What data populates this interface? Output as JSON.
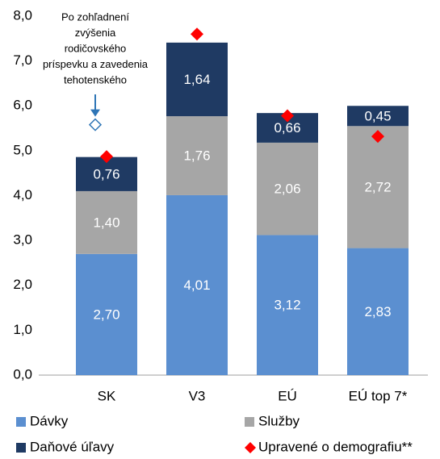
{
  "chart_data": {
    "type": "stacked_bar",
    "categories": [
      "SK",
      "V3",
      "EÚ",
      "EÚ top 7*"
    ],
    "series": [
      {
        "name": "Dávky",
        "color": "#5b8fd0",
        "values": [
          2.7,
          4.01,
          3.12,
          2.83
        ],
        "value_labels": [
          "2,70",
          "4,01",
          "3,12",
          "2,83"
        ]
      },
      {
        "name": "Služby",
        "color": "#a6a6a6",
        "values": [
          1.4,
          1.76,
          2.06,
          2.72
        ],
        "value_labels": [
          "1,40",
          "1,76",
          "2,06",
          "2,72"
        ]
      },
      {
        "name": "Daňové úľavy",
        "color": "#1f3a63",
        "values": [
          0.76,
          1.64,
          0.66,
          0.45
        ],
        "value_labels": [
          "0,76",
          "1,64",
          "0,66",
          "0,45"
        ]
      }
    ],
    "markers": {
      "name": "Upravené o demografiu**",
      "color": "#ff0000",
      "values": [
        4.87,
        7.6,
        5.78,
        5.32
      ]
    },
    "annotation": {
      "lines": [
        "Po zohľadnení",
        "zvýšenia",
        "rodičovského",
        "príspevku a zavedenia",
        "tehotenského"
      ],
      "value": 5.58,
      "color": "#2e75b6"
    },
    "ylim": [
      0,
      8
    ],
    "yticks": [
      {
        "value": 0,
        "label": "0,0"
      },
      {
        "value": 1,
        "label": "1,0"
      },
      {
        "value": 2,
        "label": "2,0"
      },
      {
        "value": 3,
        "label": "3,0"
      },
      {
        "value": 4,
        "label": "4,0"
      },
      {
        "value": 5,
        "label": "5,0"
      },
      {
        "value": 6,
        "label": "6,0"
      },
      {
        "value": 7,
        "label": "7,0"
      },
      {
        "value": 8,
        "label": "8,0"
      }
    ],
    "grid": false
  }
}
